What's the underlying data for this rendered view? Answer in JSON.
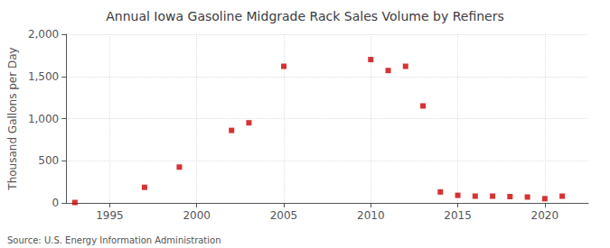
{
  "chart_data": {
    "type": "scatter",
    "title": "Annual Iowa Gasoline Midgrade Rack Sales Volume by Refiners",
    "ylabel": "Thousand Gallons per Day",
    "source": "Source: U.S. Energy Information Administration",
    "x": [
      1993,
      1997,
      1999,
      2002,
      2003,
      2005,
      2010,
      2011,
      2012,
      2013,
      2014,
      2015,
      2016,
      2017,
      2018,
      2019,
      2020,
      2021
    ],
    "values": [
      5,
      185,
      425,
      860,
      950,
      1620,
      1700,
      1570,
      1620,
      1150,
      130,
      90,
      80,
      80,
      75,
      70,
      50,
      80
    ],
    "color": "#cc0000",
    "marker": "square",
    "xlim": [
      1992.5,
      2022.5
    ],
    "xticks": [
      1995,
      2000,
      2005,
      2010,
      2015,
      2020
    ],
    "ylim": [
      0,
      2000
    ],
    "yticks": [
      0,
      500,
      {
        "value": 1000,
        "label": "1,000"
      },
      {
        "value": 1500,
        "label": "1,500"
      },
      {
        "value": 2000,
        "label": "2,000"
      }
    ],
    "grid": true
  }
}
